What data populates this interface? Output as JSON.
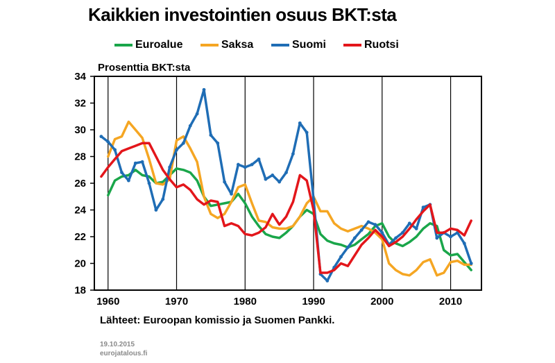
{
  "title": "Kaikkien investointien osuus BKT:sta",
  "source": "Lähteet: Euroopan komissio ja Suomen Pankki.",
  "footer": {
    "date": "19.10.2015",
    "site": "eurojatalous.fi"
  },
  "legend": [
    {
      "name": "Euroalue",
      "color": "#1aa64a"
    },
    {
      "name": "Saksa",
      "color": "#f5a623"
    },
    {
      "name": "Suomi",
      "color": "#1f6db5"
    },
    {
      "name": "Ruotsi",
      "color": "#e3161b"
    }
  ],
  "chart_data": {
    "type": "line",
    "title": "Kaikkien investointien osuus BKT:sta",
    "ylabel": "Prosenttia BKT:sta",
    "xlabel": "",
    "xlim": [
      1958,
      2014.5
    ],
    "ylim": [
      18,
      34
    ],
    "yticks": [
      18,
      20,
      22,
      24,
      26,
      28,
      30,
      32,
      34
    ],
    "xticks": [
      1960,
      1970,
      1980,
      1990,
      2000,
      2010
    ],
    "grid": "vertical",
    "legend_position": "top",
    "series": [
      {
        "name": "Euroalue",
        "color": "#1aa64a",
        "markers": false,
        "x": [
          1960,
          1961,
          1962,
          1963,
          1964,
          1965,
          1966,
          1967,
          1968,
          1969,
          1970,
          1971,
          1972,
          1973,
          1974,
          1975,
          1976,
          1977,
          1978,
          1979,
          1980,
          1981,
          1982,
          1983,
          1984,
          1985,
          1986,
          1987,
          1988,
          1989,
          1990,
          1991,
          1992,
          1993,
          1994,
          1995,
          1996,
          1997,
          1998,
          1999,
          2000,
          2001,
          2002,
          2003,
          2004,
          2005,
          2006,
          2007,
          2008,
          2009,
          2010,
          2011,
          2012,
          2013
        ],
        "y": [
          25.1,
          26.2,
          26.5,
          26.6,
          27.0,
          26.6,
          26.5,
          26.0,
          26.1,
          26.6,
          27.1,
          27.0,
          26.8,
          26.2,
          25.0,
          24.3,
          24.4,
          24.5,
          24.6,
          25.2,
          24.5,
          23.5,
          22.8,
          22.2,
          22.0,
          21.9,
          22.3,
          22.8,
          23.5,
          24.0,
          23.7,
          22.2,
          21.7,
          21.5,
          21.4,
          21.2,
          21.4,
          21.8,
          22.2,
          22.8,
          23.0,
          22.0,
          21.5,
          21.3,
          21.6,
          22.0,
          22.6,
          23.0,
          22.8,
          21.0,
          20.6,
          20.7,
          20.1,
          19.5
        ]
      },
      {
        "name": "Saksa",
        "color": "#f5a623",
        "markers": false,
        "x": [
          1960,
          1961,
          1962,
          1963,
          1964,
          1965,
          1966,
          1967,
          1968,
          1969,
          1970,
          1971,
          1972,
          1973,
          1974,
          1975,
          1976,
          1977,
          1978,
          1979,
          1980,
          1981,
          1982,
          1983,
          1984,
          1985,
          1986,
          1987,
          1988,
          1989,
          1990,
          1991,
          1992,
          1993,
          1994,
          1995,
          1996,
          1997,
          1998,
          1999,
          2000,
          2001,
          2002,
          2003,
          2004,
          2005,
          2006,
          2007,
          2008,
          2009,
          2010,
          2011,
          2012,
          2013
        ],
        "y": [
          28.0,
          29.3,
          29.5,
          30.6,
          30.0,
          29.4,
          27.8,
          26.0,
          25.9,
          26.3,
          29.2,
          29.5,
          28.6,
          27.6,
          25.0,
          23.7,
          23.4,
          23.7,
          24.6,
          25.7,
          25.9,
          24.5,
          23.2,
          23.1,
          22.7,
          22.6,
          22.6,
          22.8,
          23.5,
          24.5,
          25.0,
          23.9,
          23.9,
          23.0,
          22.6,
          22.4,
          22.6,
          22.8,
          22.6,
          22.3,
          21.8,
          20.0,
          19.5,
          19.2,
          19.1,
          19.5,
          20.1,
          20.3,
          19.1,
          19.3,
          20.1,
          20.2,
          19.9,
          19.9
        ]
      },
      {
        "name": "Suomi",
        "color": "#1f6db5",
        "markers": true,
        "x": [
          1959,
          1960,
          1961,
          1962,
          1963,
          1964,
          1965,
          1966,
          1967,
          1968,
          1969,
          1970,
          1971,
          1972,
          1973,
          1974,
          1975,
          1976,
          1977,
          1978,
          1979,
          1980,
          1981,
          1982,
          1983,
          1984,
          1985,
          1986,
          1987,
          1988,
          1989,
          1990,
          1991,
          1992,
          1993,
          1994,
          1995,
          1996,
          1997,
          1998,
          1999,
          2000,
          2001,
          2002,
          2003,
          2004,
          2005,
          2006,
          2007,
          2008,
          2009,
          2010,
          2011,
          2012,
          2013
        ],
        "y": [
          29.5,
          29.1,
          28.5,
          26.8,
          26.2,
          27.5,
          27.6,
          26.0,
          24.0,
          24.8,
          27.2,
          28.5,
          29.0,
          30.3,
          31.2,
          33.0,
          29.6,
          29.0,
          26.1,
          25.2,
          27.4,
          27.2,
          27.4,
          27.8,
          26.3,
          26.6,
          26.1,
          26.8,
          28.2,
          30.5,
          29.8,
          24.8,
          19.2,
          18.7,
          19.7,
          20.5,
          21.2,
          21.9,
          22.5,
          23.1,
          22.9,
          22.3,
          21.4,
          21.9,
          22.3,
          23.0,
          22.6,
          24.2,
          24.4,
          21.9,
          22.3,
          22.0,
          22.3,
          21.5,
          20.0
        ]
      },
      {
        "name": "Ruotsi",
        "color": "#e3161b",
        "markers": false,
        "x": [
          1959,
          1960,
          1961,
          1962,
          1963,
          1964,
          1965,
          1966,
          1967,
          1968,
          1969,
          1970,
          1971,
          1972,
          1973,
          1974,
          1975,
          1976,
          1977,
          1978,
          1979,
          1980,
          1981,
          1982,
          1983,
          1984,
          1985,
          1986,
          1987,
          1988,
          1989,
          1990,
          1991,
          1992,
          1993,
          1994,
          1995,
          1996,
          1997,
          1998,
          1999,
          2000,
          2001,
          2002,
          2003,
          2004,
          2005,
          2006,
          2007,
          2008,
          2009,
          2010,
          2011,
          2012,
          2013
        ],
        "y": [
          26.5,
          27.2,
          27.8,
          28.4,
          28.6,
          28.8,
          29.0,
          29.0,
          28.0,
          27.0,
          26.3,
          25.7,
          25.9,
          25.5,
          24.8,
          24.4,
          24.7,
          24.6,
          22.8,
          23.0,
          22.8,
          22.2,
          22.1,
          22.3,
          22.7,
          23.7,
          22.9,
          23.5,
          24.6,
          26.6,
          26.2,
          24.0,
          19.3,
          19.3,
          19.5,
          20.0,
          19.8,
          20.6,
          21.4,
          21.9,
          22.5,
          22.0,
          21.3,
          21.6,
          22.0,
          22.6,
          23.3,
          23.9,
          24.4,
          22.3,
          22.3,
          22.6,
          22.5,
          22.1,
          23.2
        ]
      }
    ]
  }
}
